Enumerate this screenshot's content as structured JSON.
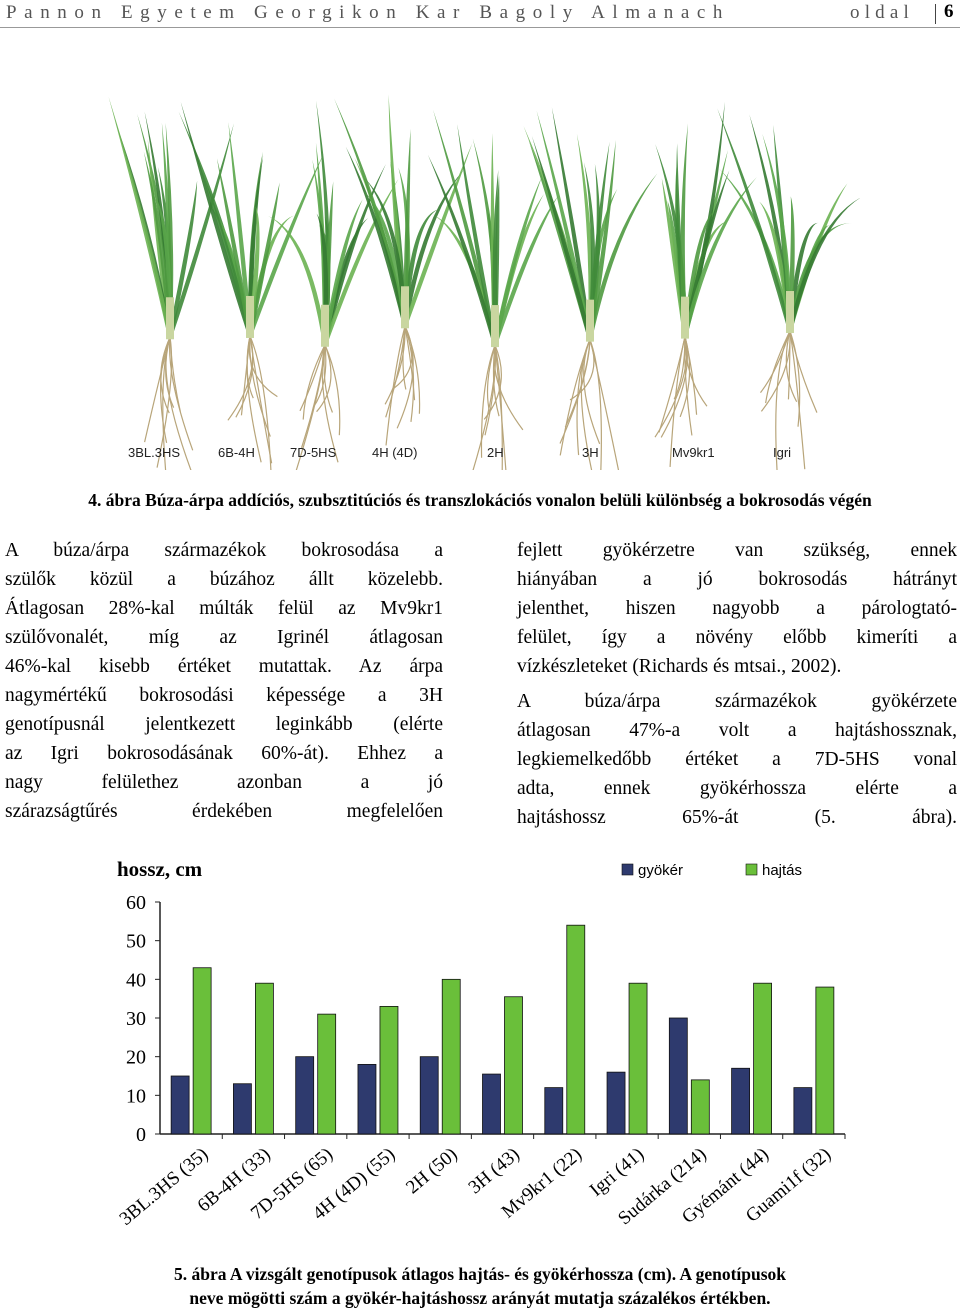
{
  "header": {
    "title": "Pannon Egyetem Georgikon Kar Bagoly Almanach",
    "page_label": "oldal",
    "page_number": "6"
  },
  "photo": {
    "labels": [
      "3BL.3HS",
      "6B-4H",
      "7D-5HS",
      "4H (4D)",
      "2H",
      "3H",
      "Mv9kr1",
      "Igri"
    ]
  },
  "figure4_caption": "4. ábra Búza-árpa addíciós, szubsztitúciós és transzlokációs vonalon belüli különbség a bokrosodás végén",
  "left_column": {
    "lines": [
      "A búza/árpa származékok bokrosodása a",
      "szülők közül a búzához állt közelebb.",
      "Átlagosan 28%-kal múlták felül az Mv9kr1",
      "szülővonalét, míg az Igrinél átlagosan",
      "46%-kal kisebb értéket mutattak. Az árpa",
      "nagymértékű bokrosodási képessége a 3H",
      "genotípusnál jelentkezett leginkább (elérte",
      "az Igri bokrosodásának 60%-át). Ehhez a",
      "nagy felülethez azonban a jó",
      "szárazságtűrés érdekében megfelelően"
    ]
  },
  "right_column": {
    "p1_lines": [
      "fejlett gyökérzetre van szükség, ennek",
      "hiányában a jó bokrosodás hátrányt",
      "jelenthet, hiszen nagyobb a párologtató-",
      "felület, így a növény előbb kimeríti a",
      "vízkészleteket (Richards és mtsai., 2002)."
    ],
    "p2_lines": [
      "A búza/árpa származékok gyökérzete",
      "átlagosan 47%-a volt a hajtáshossznak,",
      "legkiemelkedőbb értéket a 7D-5HS vonal",
      "adta, ennek gyökérhossza elérte a",
      "hajtáshossz 65%-át (5. ábra)."
    ]
  },
  "chart_data": {
    "type": "bar",
    "ylabel": "hossz, cm",
    "ylim": [
      0,
      60
    ],
    "yticks": [
      "0",
      "10",
      "20",
      "30",
      "40",
      "50",
      "60"
    ],
    "categories": [
      "3BL.3HS (35)",
      "6B-4H (33)",
      "7D-5HS (65)",
      "4H (4D) (55)",
      "2H (50)",
      "3H (43)",
      "Mv9kr1 (22)",
      "Igri (41)",
      "Sudárka (214)",
      "Gyémánt (44)",
      "Guami1f (32)"
    ],
    "series": [
      {
        "name": "gyökér",
        "color": "#2e3a6e",
        "values": [
          15,
          13,
          20,
          18,
          20,
          15.5,
          12,
          16,
          30,
          17,
          12
        ]
      },
      {
        "name": "hajtás",
        "color": "#6abf3a",
        "values": [
          43,
          39,
          31,
          33,
          40,
          35.5,
          54,
          39,
          14,
          39,
          38
        ]
      }
    ],
    "legend": "top-right",
    "grid": false
  },
  "figure5_caption": {
    "line1": "5. ábra A vizsgált genotípusok átlagos hajtás- és gyökérhossza (cm). A genotípusok",
    "line2": "neve mögötti szám a gyökér-hajtáshossz arányát mutatja százalékos értékben."
  }
}
